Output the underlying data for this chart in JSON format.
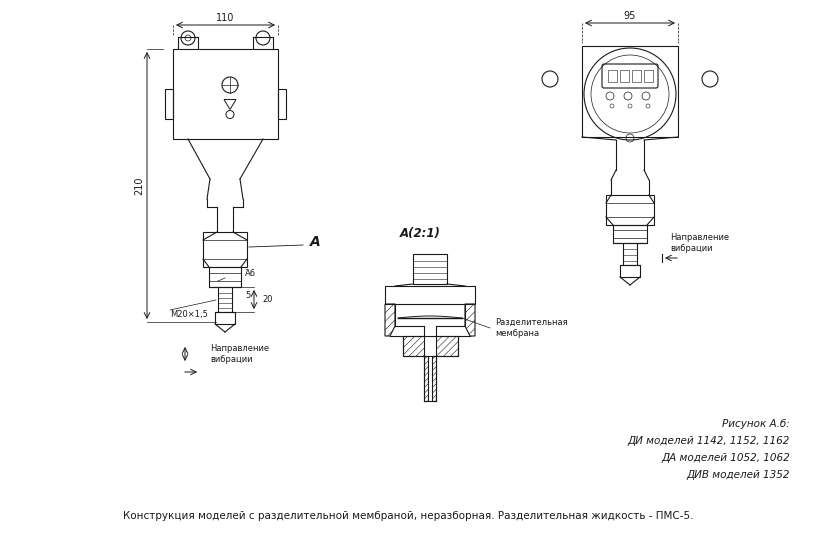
{
  "background_color": "#ffffff",
  "line_color": "#1a1a1a",
  "text_color": "#1a1a1a",
  "figure_size": [
    8.16,
    5.49
  ],
  "dpi": 100,
  "title_bottom": "Конструкция моделей с разделительной мембраной, неразборная. Разделительная жидкость - ПМС-5.",
  "label_risunok": "Рисунок А.б:",
  "label_di": "ДИ моделей 1142, 1152, 1162",
  "label_da": "ДА моделей 1052, 1062",
  "label_div": "ДИВ моделей 1352",
  "dim_110": "110",
  "dim_95": "95",
  "dim_210": "210",
  "dim_20": "20",
  "dim_phi6": "Ά6",
  "dim_5": "5",
  "dim_M20": "M20×1,5",
  "label_A": "A",
  "label_A21": "A(2:1)",
  "label_napravlenie1": "Направление\nвибрации",
  "label_napravlenie2": "Направление\nвибрации",
  "label_membrana": "Разделительная\nмембрана"
}
